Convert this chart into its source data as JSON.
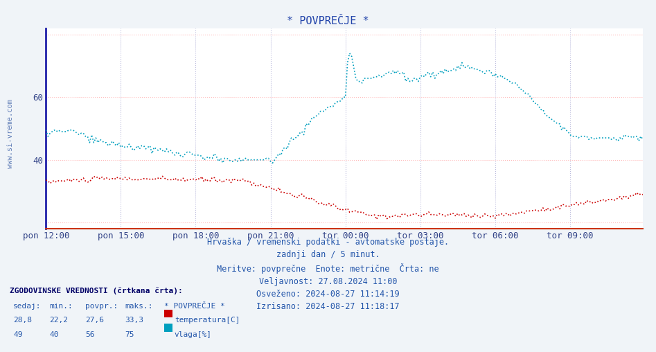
{
  "title": "* POVPREČJE *",
  "bg_color": "#f0f4f8",
  "plot_bg_color": "#ffffff",
  "ylim": [
    18,
    82
  ],
  "xlim": [
    0,
    287
  ],
  "ytick_vals": [
    40,
    60
  ],
  "xtick_labels": [
    "pon 12:00",
    "pon 15:00",
    "pon 18:00",
    "pon 21:00",
    "tor 00:00",
    "tor 03:00",
    "tor 06:00",
    "tor 09:00"
  ],
  "xtick_positions": [
    0,
    36,
    72,
    108,
    144,
    180,
    216,
    252
  ],
  "temp_color": "#cc0000",
  "hum_color": "#009fbe",
  "grid_h_color": "#ffbbbb",
  "grid_v_color": "#bbbbdd",
  "yaxis_color": "#2222aa",
  "xaxis_color": "#cc3300",
  "title_color": "#2244aa",
  "tick_color": "#334488",
  "watermark": "www.si-vreme.com",
  "info_lines": [
    "Hrvaška / vremenski podatki - avtomatske postaje.",
    "zadnji dan / 5 minut.",
    "Meritve: povprečne  Enote: metrične  Črta: ne",
    "Veljavnost: 27.08.2024 11:00",
    "Osveženo: 2024-08-27 11:14:19",
    "Izrisano: 2024-08-27 11:18:17"
  ],
  "legend_title": "ZGODOVINSKE VREDNOSTI (črtkana črta):",
  "legend_col_headers": [
    "sedaj:",
    "min.:",
    "povpr.:",
    "maks.:",
    "* POVPREČJE *"
  ],
  "legend_temp_vals": [
    "28,8",
    "22,2",
    "27,6",
    "33,3"
  ],
  "legend_hum_vals": [
    "49",
    "40",
    "56",
    "75"
  ],
  "legend_label_temp": "temperatura[C]",
  "legend_label_hum": "vlaga[%]"
}
